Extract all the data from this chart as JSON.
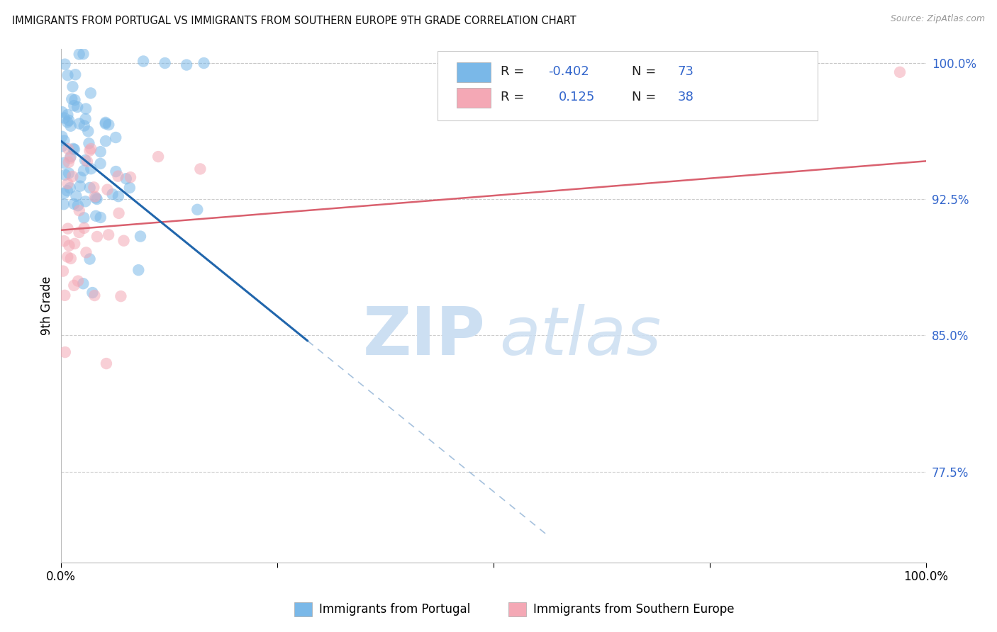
{
  "title": "IMMIGRANTS FROM PORTUGAL VS IMMIGRANTS FROM SOUTHERN EUROPE 9TH GRADE CORRELATION CHART",
  "source": "Source: ZipAtlas.com",
  "xlabel_blue": "Immigrants from Portugal",
  "xlabel_pink": "Immigrants from Southern Europe",
  "ylabel": "9th Grade",
  "xlim": [
    0.0,
    1.0
  ],
  "ylim": [
    0.725,
    1.008
  ],
  "yticks": [
    0.775,
    0.85,
    0.925,
    1.0
  ],
  "ytick_labels": [
    "77.5%",
    "85.0%",
    "92.5%",
    "100.0%"
  ],
  "xtick_positions": [
    0.0,
    0.25,
    0.5,
    0.75,
    1.0
  ],
  "xtick_labels": [
    "0.0%",
    "",
    "",
    "",
    "100.0%"
  ],
  "R_blue": -0.402,
  "N_blue": 73,
  "R_pink": 0.125,
  "N_pink": 38,
  "blue_scatter_color": "#7ab8e8",
  "pink_scatter_color": "#f4a8b5",
  "blue_line_color": "#2166ac",
  "pink_line_color": "#d9606e",
  "grid_color": "#c8c8c8",
  "blue_line_x0": 0.0,
  "blue_line_y0": 0.957,
  "blue_line_x1": 0.285,
  "blue_line_y1": 0.847,
  "blue_line_solid_end": 0.285,
  "blue_line_dashed_end": 0.56,
  "blue_line_dashed_y_end": 0.735,
  "pink_line_x0": 0.0,
  "pink_line_y0": 0.908,
  "pink_line_x1": 1.0,
  "pink_line_y1": 0.946
}
